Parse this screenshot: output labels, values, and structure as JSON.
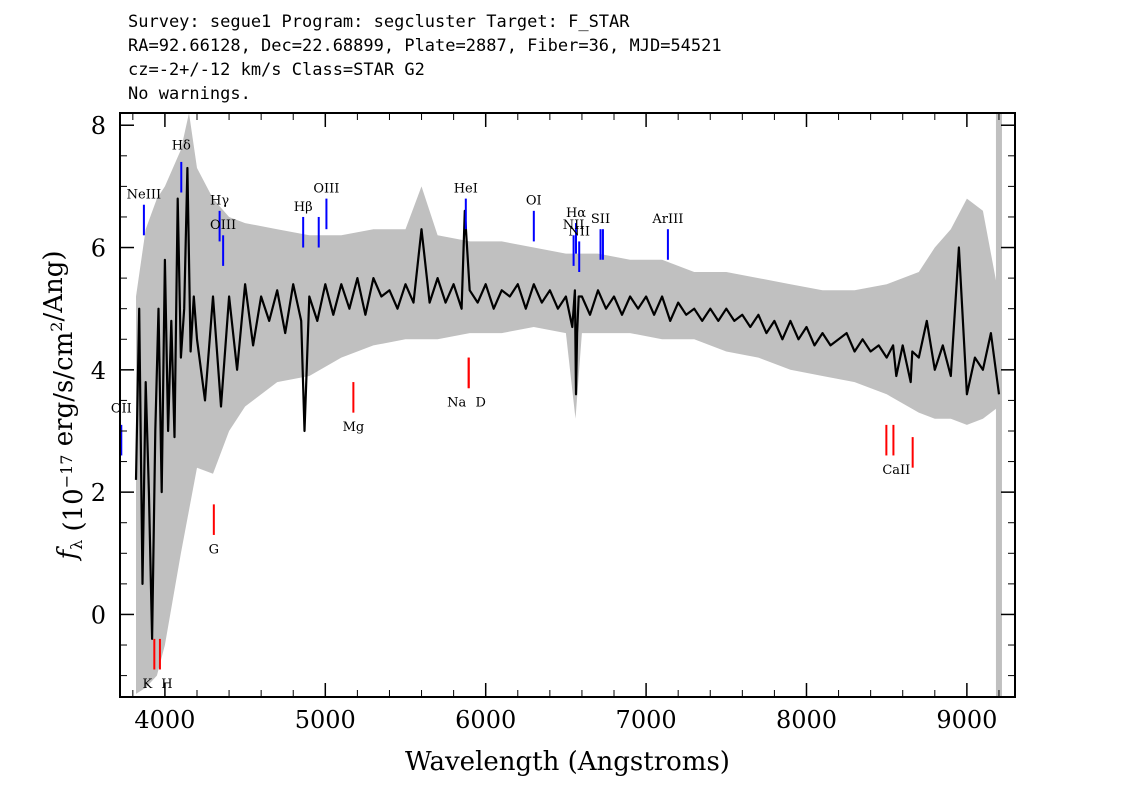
{
  "header": {
    "line1": "Survey: segue1 Program: segcluster Target: F_STAR",
    "line2": "RA=92.66128, Dec=22.68899, Plate=2887, Fiber=36, MJD=54521",
    "line3": "cz=-2+/-12 km/s Class=STAR G2",
    "line4": "No warnings."
  },
  "chart_data": {
    "type": "line",
    "xlabel": "Wavelength (Angstroms)",
    "ylabel": "f_λ (10^-17 erg/s/cm^2/Ang)",
    "xlim": [
      3720,
      9300
    ],
    "ylim": [
      -1.35,
      8.2
    ],
    "x_ticks": [
      4000,
      5000,
      6000,
      7000,
      8000,
      9000
    ],
    "y_ticks": [
      0,
      2,
      4,
      6,
      8
    ],
    "grid": false,
    "series": [
      {
        "role": "flux (smoothed)",
        "color": "#000000",
        "x": [
          3820,
          3840,
          3860,
          3880,
          3900,
          3920,
          3940,
          3960,
          3980,
          4000,
          4020,
          4040,
          4060,
          4080,
          4100,
          4120,
          4140,
          4160,
          4180,
          4200,
          4250,
          4300,
          4350,
          4400,
          4450,
          4500,
          4550,
          4600,
          4650,
          4700,
          4750,
          4800,
          4850,
          4870,
          4900,
          4950,
          5000,
          5050,
          5100,
          5150,
          5200,
          5250,
          5300,
          5350,
          5400,
          5450,
          5500,
          5550,
          5600,
          5650,
          5700,
          5750,
          5800,
          5850,
          5870,
          5900,
          5950,
          6000,
          6050,
          6100,
          6150,
          6200,
          6250,
          6300,
          6350,
          6400,
          6450,
          6500,
          6540,
          6556,
          6563,
          6570,
          6580,
          6600,
          6650,
          6700,
          6750,
          6800,
          6850,
          6900,
          6950,
          7000,
          7050,
          7100,
          7150,
          7200,
          7250,
          7300,
          7350,
          7400,
          7450,
          7500,
          7550,
          7600,
          7650,
          7700,
          7750,
          7800,
          7850,
          7900,
          7950,
          8000,
          8050,
          8100,
          8150,
          8200,
          8250,
          8300,
          8350,
          8400,
          8450,
          8500,
          8540,
          8560,
          8600,
          8650,
          8660,
          8700,
          8750,
          8800,
          8850,
          8900,
          8950,
          9000,
          9050,
          9100,
          9150,
          9200
        ],
        "y": [
          2.2,
          5.0,
          0.5,
          3.8,
          2.0,
          -0.4,
          3.0,
          5.0,
          2.0,
          5.8,
          3.0,
          4.8,
          2.9,
          6.8,
          4.2,
          5.0,
          7.3,
          4.3,
          5.2,
          4.5,
          3.5,
          5.2,
          3.4,
          5.2,
          4.0,
          5.4,
          4.4,
          5.2,
          4.8,
          5.3,
          4.6,
          5.4,
          4.8,
          3.0,
          5.2,
          4.8,
          5.4,
          4.9,
          5.4,
          5.0,
          5.5,
          4.9,
          5.5,
          5.2,
          5.3,
          5.0,
          5.4,
          5.1,
          6.3,
          5.1,
          5.5,
          5.1,
          5.4,
          5.0,
          6.6,
          5.3,
          5.1,
          5.4,
          5.0,
          5.3,
          5.2,
          5.4,
          5.0,
          5.4,
          5.1,
          5.3,
          5.0,
          5.2,
          4.7,
          5.3,
          3.6,
          4.6,
          5.2,
          5.2,
          4.9,
          5.3,
          5.0,
          5.2,
          4.9,
          5.2,
          5.0,
          5.2,
          4.9,
          5.2,
          4.8,
          5.1,
          4.9,
          5.0,
          4.8,
          5.0,
          4.8,
          5.0,
          4.8,
          4.9,
          4.7,
          4.9,
          4.6,
          4.8,
          4.5,
          4.8,
          4.5,
          4.7,
          4.4,
          4.6,
          4.4,
          4.5,
          4.6,
          4.3,
          4.5,
          4.3,
          4.4,
          4.2,
          4.4,
          3.9,
          4.4,
          3.8,
          4.3,
          4.2,
          4.8,
          4.0,
          4.4,
          3.9,
          6.0,
          3.6,
          4.2,
          4.0,
          4.6,
          3.6
        ]
      }
    ],
    "error_band": {
      "role": "flux uncertainty",
      "color": "#c0c0c0",
      "upper": [
        [
          3820,
          5.2
        ],
        [
          3880,
          6.3
        ],
        [
          3950,
          6.8
        ],
        [
          4000,
          7.0
        ],
        [
          4100,
          7.6
        ],
        [
          4150,
          8.2
        ],
        [
          4200,
          7.3
        ],
        [
          4300,
          6.8
        ],
        [
          4400,
          6.5
        ],
        [
          4500,
          6.4
        ],
        [
          4700,
          6.3
        ],
        [
          4900,
          6.2
        ],
        [
          5100,
          6.2
        ],
        [
          5300,
          6.3
        ],
        [
          5500,
          6.3
        ],
        [
          5600,
          7.0
        ],
        [
          5700,
          6.2
        ],
        [
          5900,
          6.1
        ],
        [
          6100,
          6.1
        ],
        [
          6300,
          6.0
        ],
        [
          6500,
          5.9
        ],
        [
          6700,
          5.9
        ],
        [
          6900,
          5.8
        ],
        [
          7100,
          5.8
        ],
        [
          7300,
          5.6
        ],
        [
          7500,
          5.6
        ],
        [
          7700,
          5.5
        ],
        [
          7900,
          5.4
        ],
        [
          8100,
          5.3
        ],
        [
          8300,
          5.3
        ],
        [
          8500,
          5.4
        ],
        [
          8700,
          5.6
        ],
        [
          8800,
          6.0
        ],
        [
          8900,
          6.3
        ],
        [
          9000,
          6.8
        ],
        [
          9100,
          6.6
        ],
        [
          9200,
          5.2
        ]
      ],
      "lower": [
        [
          3820,
          -1.3
        ],
        [
          3880,
          -1.2
        ],
        [
          3950,
          -1.0
        ],
        [
          4000,
          -0.5
        ],
        [
          4100,
          1.0
        ],
        [
          4200,
          2.4
        ],
        [
          4300,
          2.3
        ],
        [
          4400,
          3.0
        ],
        [
          4500,
          3.4
        ],
        [
          4700,
          3.8
        ],
        [
          4900,
          3.9
        ],
        [
          5100,
          4.2
        ],
        [
          5300,
          4.4
        ],
        [
          5500,
          4.5
        ],
        [
          5700,
          4.5
        ],
        [
          5900,
          4.6
        ],
        [
          6100,
          4.6
        ],
        [
          6300,
          4.7
        ],
        [
          6500,
          4.6
        ],
        [
          6560,
          3.2
        ],
        [
          6600,
          4.6
        ],
        [
          6700,
          4.6
        ],
        [
          6900,
          4.6
        ],
        [
          7100,
          4.5
        ],
        [
          7300,
          4.5
        ],
        [
          7500,
          4.3
        ],
        [
          7700,
          4.2
        ],
        [
          7900,
          4.0
        ],
        [
          8100,
          3.9
        ],
        [
          8300,
          3.8
        ],
        [
          8500,
          3.6
        ],
        [
          8700,
          3.3
        ],
        [
          8800,
          3.2
        ],
        [
          8900,
          3.2
        ],
        [
          9000,
          3.1
        ],
        [
          9100,
          3.2
        ],
        [
          9200,
          3.4
        ]
      ]
    },
    "emission_lines": [
      {
        "label": "OII",
        "x": 3728,
        "y0": 2.6,
        "y1": 3.1,
        "label_y": 3.3
      },
      {
        "label": "NeIII",
        "x": 3869,
        "y0": 6.2,
        "y1": 6.7,
        "label_y": 6.8
      },
      {
        "label": "Hδ",
        "x": 4102,
        "y0": 6.9,
        "y1": 7.4,
        "label_y": 7.6
      },
      {
        "label": "Hγ",
        "x": 4341,
        "y0": 6.1,
        "y1": 6.6,
        "label_y": 6.7
      },
      {
        "label": "OIII",
        "x": 4363,
        "y0": 5.7,
        "y1": 6.2,
        "label_y": 6.3
      },
      {
        "label": "Hβ",
        "x": 4862,
        "y0": 6.0,
        "y1": 6.5,
        "label_y": 6.6
      },
      {
        "label": "OIII",
        "x": 4959,
        "y0": 6.0,
        "y1": 6.5,
        "label_y": 6.9
      },
      {
        "label": "OIII",
        "x": 5007,
        "y0": 6.3,
        "y1": 6.8,
        "label_y": 6.9
      },
      {
        "label": "HeI",
        "x": 5876,
        "y0": 6.3,
        "y1": 6.8,
        "label_y": 6.9
      },
      {
        "label": "OI",
        "x": 6300,
        "y0": 6.1,
        "y1": 6.6,
        "label_y": 6.7
      },
      {
        "label": "NII",
        "x": 6548,
        "y0": 5.7,
        "y1": 6.2,
        "label_y": 6.3
      },
      {
        "label": "Hα",
        "x": 6563,
        "y0": 5.9,
        "y1": 6.4,
        "label_y": 6.5
      },
      {
        "label": "NII",
        "x": 6583,
        "y0": 5.6,
        "y1": 6.1,
        "label_y": 6.2
      },
      {
        "label": "SII",
        "x": 6716,
        "y0": 5.8,
        "y1": 6.3,
        "label_y": 6.4
      },
      {
        "label": "SII",
        "x": 6731,
        "y0": 5.8,
        "y1": 6.3,
        "label_y": 6.4
      },
      {
        "label": "ArIII",
        "x": 7136,
        "y0": 5.8,
        "y1": 6.3,
        "label_y": 6.4
      }
    ],
    "absorption_lines": [
      {
        "label": "K",
        "x": 3934,
        "y0": -0.9,
        "y1": -0.4,
        "label_y": -1.2
      },
      {
        "label": "H",
        "x": 3969,
        "y0": -0.9,
        "y1": -0.4,
        "label_y": -1.2
      },
      {
        "label": "G",
        "x": 4305,
        "y0": 1.3,
        "y1": 1.8,
        "label_y": 1.0
      },
      {
        "label": "Mg",
        "x": 5175,
        "y0": 3.3,
        "y1": 3.8,
        "label_y": 3.0
      },
      {
        "label": "Na",
        "x": 5894,
        "y0": 3.7,
        "y1": 4.2,
        "label_y": 3.4
      },
      {
        "label": "D",
        "x": 5894,
        "y0": 3.7,
        "y1": 4.2,
        "label_y": 3.4
      },
      {
        "label": "CaII",
        "x": 8498,
        "y0": 2.6,
        "y1": 3.1,
        "label_y": 2.3
      },
      {
        "label": "CaII",
        "x": 8542,
        "y0": 2.6,
        "y1": 3.1,
        "label_y": 2.3
      },
      {
        "label": "CaII",
        "x": 8662,
        "y0": 2.4,
        "y1": 2.9,
        "label_y": 2.3
      }
    ],
    "colors": {
      "flux": "#000000",
      "error": "#c0c0c0",
      "emission": "#0000ff",
      "emission_label": "#000000",
      "absorption": "#ff0000"
    }
  }
}
